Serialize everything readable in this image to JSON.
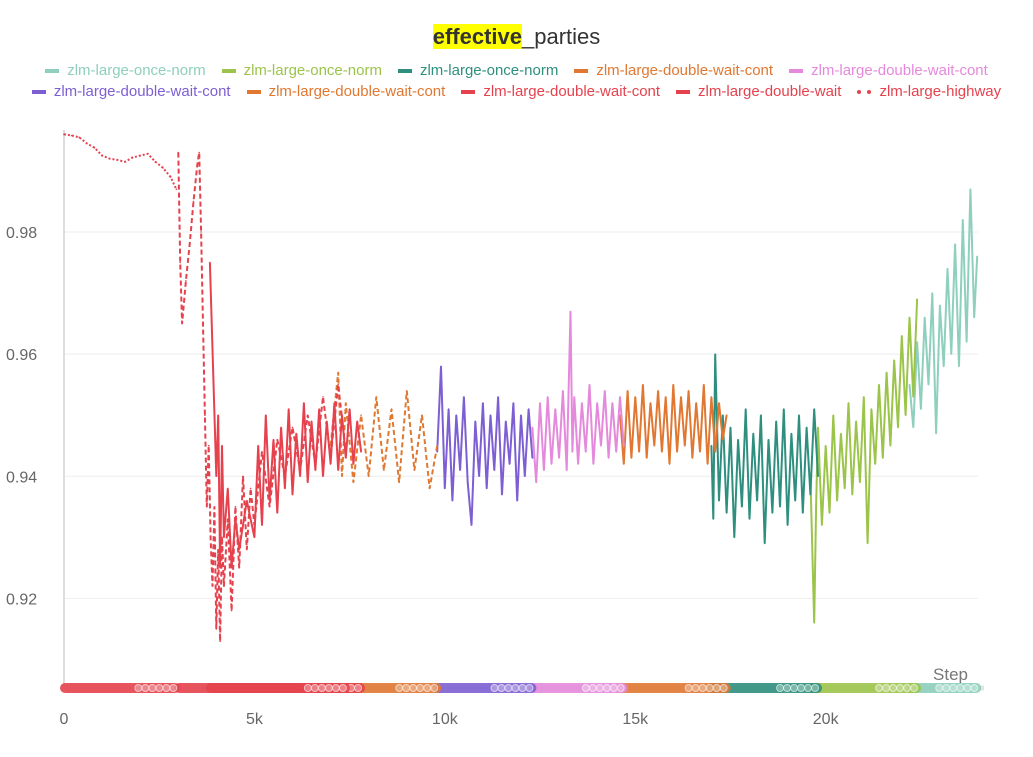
{
  "chart_data": {
    "type": "line",
    "title_highlight": "effective",
    "title_rest": "_parties",
    "xlabel": "Step",
    "ylabel": "",
    "xlim": [
      0,
      24000
    ],
    "ylim": [
      0.905,
      0.9967
    ],
    "x_ticks": [
      0,
      5000,
      10000,
      15000,
      20000
    ],
    "x_tick_labels": [
      "0",
      "5k",
      "10k",
      "15k",
      "20k"
    ],
    "y_ticks": [
      0.92,
      0.94,
      0.96,
      0.98
    ],
    "y_tick_labels": [
      "0.92",
      "0.94",
      "0.96",
      "0.98"
    ],
    "grid": true,
    "legend_position": "top",
    "series": [
      {
        "name": "zlm-large-once-norm",
        "color": "#8ecfbd",
        "dash": "solid",
        "points": [
          [
            22200,
            0.955
          ],
          [
            22300,
            0.948
          ],
          [
            22400,
            0.962
          ],
          [
            22500,
            0.951
          ],
          [
            22600,
            0.966
          ],
          [
            22700,
            0.955
          ],
          [
            22800,
            0.97
          ],
          [
            22900,
            0.947
          ],
          [
            23000,
            0.968
          ],
          [
            23100,
            0.958
          ],
          [
            23200,
            0.974
          ],
          [
            23300,
            0.96
          ],
          [
            23400,
            0.978
          ],
          [
            23500,
            0.958
          ],
          [
            23600,
            0.982
          ],
          [
            23700,
            0.962
          ],
          [
            23800,
            0.987
          ],
          [
            23900,
            0.966
          ],
          [
            23980,
            0.976
          ]
        ]
      },
      {
        "name": "zlm-large-once-norm",
        "color": "#9cc44a",
        "dash": "solid",
        "points": [
          [
            19600,
            0.94
          ],
          [
            19700,
            0.916
          ],
          [
            19750,
            0.935
          ],
          [
            19800,
            0.948
          ],
          [
            19900,
            0.932
          ],
          [
            20000,
            0.945
          ],
          [
            20100,
            0.934
          ],
          [
            20200,
            0.95
          ],
          [
            20300,
            0.936
          ],
          [
            20400,
            0.947
          ],
          [
            20500,
            0.938
          ],
          [
            20600,
            0.952
          ],
          [
            20700,
            0.937
          ],
          [
            20800,
            0.949
          ],
          [
            20900,
            0.939
          ],
          [
            21000,
            0.953
          ],
          [
            21100,
            0.929
          ],
          [
            21200,
            0.951
          ],
          [
            21300,
            0.942
          ],
          [
            21400,
            0.955
          ],
          [
            21500,
            0.943
          ],
          [
            21600,
            0.957
          ],
          [
            21700,
            0.945
          ],
          [
            21800,
            0.959
          ],
          [
            21900,
            0.948
          ],
          [
            22000,
            0.963
          ],
          [
            22100,
            0.95
          ],
          [
            22200,
            0.966
          ],
          [
            22300,
            0.953
          ],
          [
            22400,
            0.969
          ]
        ]
      },
      {
        "name": "zlm-large-once-norm",
        "color": "#2f8f7e",
        "dash": "solid",
        "points": [
          [
            17000,
            0.945
          ],
          [
            17050,
            0.933
          ],
          [
            17100,
            0.96
          ],
          [
            17200,
            0.936
          ],
          [
            17300,
            0.95
          ],
          [
            17400,
            0.934
          ],
          [
            17500,
            0.948
          ],
          [
            17600,
            0.93
          ],
          [
            17700,
            0.946
          ],
          [
            17800,
            0.935
          ],
          [
            17900,
            0.951
          ],
          [
            18000,
            0.933
          ],
          [
            18100,
            0.947
          ],
          [
            18200,
            0.936
          ],
          [
            18300,
            0.95
          ],
          [
            18400,
            0.929
          ],
          [
            18500,
            0.946
          ],
          [
            18600,
            0.934
          ],
          [
            18700,
            0.949
          ],
          [
            18800,
            0.935
          ],
          [
            18900,
            0.951
          ],
          [
            19000,
            0.932
          ],
          [
            19100,
            0.947
          ],
          [
            19200,
            0.936
          ],
          [
            19300,
            0.95
          ],
          [
            19400,
            0.934
          ],
          [
            19500,
            0.948
          ],
          [
            19600,
            0.937
          ],
          [
            19700,
            0.951
          ],
          [
            19800,
            0.94
          ]
        ]
      },
      {
        "name": "zlm-large-double-wait-cont",
        "color": "#e07832",
        "dash": "solid",
        "points": [
          [
            14600,
            0.95
          ],
          [
            14700,
            0.942
          ],
          [
            14800,
            0.954
          ],
          [
            14900,
            0.943
          ],
          [
            15000,
            0.953
          ],
          [
            15100,
            0.944
          ],
          [
            15200,
            0.955
          ],
          [
            15300,
            0.943
          ],
          [
            15400,
            0.952
          ],
          [
            15500,
            0.945
          ],
          [
            15600,
            0.954
          ],
          [
            15700,
            0.944
          ],
          [
            15800,
            0.953
          ],
          [
            15900,
            0.942
          ],
          [
            16000,
            0.955
          ],
          [
            16100,
            0.944
          ],
          [
            16200,
            0.953
          ],
          [
            16300,
            0.945
          ],
          [
            16400,
            0.954
          ],
          [
            16500,
            0.943
          ],
          [
            16600,
            0.952
          ],
          [
            16700,
            0.944
          ],
          [
            16800,
            0.955
          ],
          [
            16900,
            0.942
          ],
          [
            17000,
            0.953
          ],
          [
            17100,
            0.944
          ],
          [
            17200,
            0.952
          ],
          [
            17300,
            0.946
          ],
          [
            17400,
            0.95
          ]
        ]
      },
      {
        "name": "zlm-large-double-wait-cont",
        "color": "#e589dc",
        "dash": "solid",
        "points": [
          [
            12300,
            0.948
          ],
          [
            12400,
            0.939
          ],
          [
            12500,
            0.952
          ],
          [
            12600,
            0.941
          ],
          [
            12700,
            0.953
          ],
          [
            12800,
            0.942
          ],
          [
            12900,
            0.951
          ],
          [
            13000,
            0.943
          ],
          [
            13100,
            0.954
          ],
          [
            13200,
            0.941
          ],
          [
            13300,
            0.967
          ],
          [
            13350,
            0.944
          ],
          [
            13400,
            0.953
          ],
          [
            13500,
            0.942
          ],
          [
            13600,
            0.952
          ],
          [
            13700,
            0.944
          ],
          [
            13800,
            0.955
          ],
          [
            13900,
            0.942
          ],
          [
            14000,
            0.952
          ],
          [
            14100,
            0.945
          ],
          [
            14200,
            0.954
          ],
          [
            14300,
            0.943
          ],
          [
            14400,
            0.952
          ],
          [
            14500,
            0.944
          ],
          [
            14600,
            0.953
          ],
          [
            14700,
            0.945
          ]
        ]
      },
      {
        "name": "zlm-large-double-wait-cont",
        "color": "#7d5fd3",
        "dash": "solid",
        "points": [
          [
            9800,
            0.944
          ],
          [
            9900,
            0.958
          ],
          [
            10000,
            0.938
          ],
          [
            10100,
            0.951
          ],
          [
            10200,
            0.936
          ],
          [
            10300,
            0.95
          ],
          [
            10400,
            0.941
          ],
          [
            10500,
            0.953
          ],
          [
            10600,
            0.939
          ],
          [
            10700,
            0.932
          ],
          [
            10800,
            0.949
          ],
          [
            10900,
            0.94
          ],
          [
            11000,
            0.952
          ],
          [
            11100,
            0.938
          ],
          [
            11200,
            0.95
          ],
          [
            11300,
            0.941
          ],
          [
            11400,
            0.953
          ],
          [
            11500,
            0.937
          ],
          [
            11600,
            0.949
          ],
          [
            11700,
            0.942
          ],
          [
            11800,
            0.952
          ],
          [
            11900,
            0.936
          ],
          [
            12000,
            0.95
          ],
          [
            12100,
            0.94
          ],
          [
            12200,
            0.951
          ],
          [
            12300,
            0.943
          ]
        ]
      },
      {
        "name": "zlm-large-double-wait-cont",
        "color": "#e07832",
        "dash": "dashed",
        "points": [
          [
            7000,
            0.945
          ],
          [
            7200,
            0.957
          ],
          [
            7300,
            0.94
          ],
          [
            7400,
            0.952
          ],
          [
            7600,
            0.939
          ],
          [
            7800,
            0.95
          ],
          [
            8000,
            0.94
          ],
          [
            8200,
            0.953
          ],
          [
            8400,
            0.941
          ],
          [
            8600,
            0.951
          ],
          [
            8800,
            0.939
          ],
          [
            9000,
            0.954
          ],
          [
            9200,
            0.941
          ],
          [
            9400,
            0.95
          ],
          [
            9600,
            0.938
          ],
          [
            9800,
            0.945
          ]
        ]
      },
      {
        "name": "zlm-large-double-wait-cont",
        "color": "#e5424e",
        "dash": "solid",
        "points": [
          [
            4000,
            0.94
          ],
          [
            4050,
            0.95
          ],
          [
            4100,
            0.925
          ],
          [
            4150,
            0.945
          ],
          [
            4200,
            0.93
          ],
          [
            4300,
            0.938
          ],
          [
            4400,
            0.925
          ],
          [
            3830,
            0.975
          ],
          [
            4500,
            0.933
          ],
          [
            4600,
            0.928
          ],
          [
            4800,
            0.936
          ],
          [
            5000,
            0.93
          ],
          [
            5100,
            0.945
          ],
          [
            5200,
            0.932
          ],
          [
            5300,
            0.95
          ],
          [
            5400,
            0.936
          ],
          [
            5500,
            0.946
          ],
          [
            5600,
            0.934
          ],
          [
            5700,
            0.948
          ],
          [
            5800,
            0.938
          ],
          [
            5900,
            0.951
          ],
          [
            6000,
            0.937
          ],
          [
            6100,
            0.947
          ],
          [
            6200,
            0.94
          ],
          [
            6300,
            0.952
          ],
          [
            6400,
            0.939
          ],
          [
            6500,
            0.949
          ],
          [
            6600,
            0.941
          ],
          [
            6700,
            0.951
          ],
          [
            6800,
            0.94
          ],
          [
            6900,
            0.949
          ],
          [
            7000,
            0.942
          ],
          [
            7100,
            0.952
          ],
          [
            7200,
            0.941
          ],
          [
            7300,
            0.95
          ],
          [
            7400,
            0.943
          ],
          [
            7500,
            0.951
          ],
          [
            7600,
            0.942
          ],
          [
            7700,
            0.949
          ],
          [
            7800,
            0.944
          ]
        ]
      },
      {
        "name": "zlm-large-double-wait",
        "color": "#e5424e",
        "dash": "dashed",
        "points": [
          [
            3000,
            0.993
          ],
          [
            3050,
            0.975
          ],
          [
            3100,
            0.965
          ],
          [
            3200,
            0.972
          ],
          [
            3300,
            0.978
          ],
          [
            3400,
            0.985
          ],
          [
            3500,
            0.991
          ],
          [
            3550,
            0.993
          ],
          [
            3600,
            0.98
          ],
          [
            3700,
            0.95
          ],
          [
            3750,
            0.935
          ],
          [
            3800,
            0.945
          ],
          [
            3850,
            0.93
          ],
          [
            3900,
            0.922
          ],
          [
            3950,
            0.935
          ],
          [
            4000,
            0.915
          ],
          [
            4050,
            0.928
          ],
          [
            4100,
            0.913
          ],
          [
            4150,
            0.93
          ],
          [
            4200,
            0.922
          ],
          [
            4300,
            0.933
          ],
          [
            4400,
            0.918
          ],
          [
            4500,
            0.935
          ],
          [
            4600,
            0.925
          ],
          [
            4700,
            0.94
          ],
          [
            4800,
            0.928
          ],
          [
            4900,
            0.938
          ],
          [
            5000,
            0.932
          ],
          [
            5200,
            0.944
          ],
          [
            5400,
            0.935
          ],
          [
            5600,
            0.946
          ],
          [
            5800,
            0.94
          ],
          [
            6000,
            0.948
          ],
          [
            6200,
            0.941
          ],
          [
            6400,
            0.95
          ],
          [
            6600,
            0.942
          ],
          [
            6800,
            0.953
          ],
          [
            7000,
            0.943
          ],
          [
            7200,
            0.955
          ],
          [
            7400,
            0.944
          ]
        ]
      },
      {
        "name": "zlm-large-highway",
        "color": "#e5424e",
        "dash": "dotted",
        "points": [
          [
            0,
            0.996
          ],
          [
            200,
            0.9958
          ],
          [
            400,
            0.9955
          ],
          [
            600,
            0.9945
          ],
          [
            800,
            0.9938
          ],
          [
            1000,
            0.9925
          ],
          [
            1200,
            0.992
          ],
          [
            1400,
            0.9918
          ],
          [
            1600,
            0.9915
          ],
          [
            1800,
            0.9922
          ],
          [
            2000,
            0.9925
          ],
          [
            2200,
            0.9928
          ],
          [
            2400,
            0.9915
          ],
          [
            2600,
            0.9905
          ],
          [
            2800,
            0.989
          ],
          [
            2950,
            0.987
          ]
        ]
      }
    ]
  }
}
